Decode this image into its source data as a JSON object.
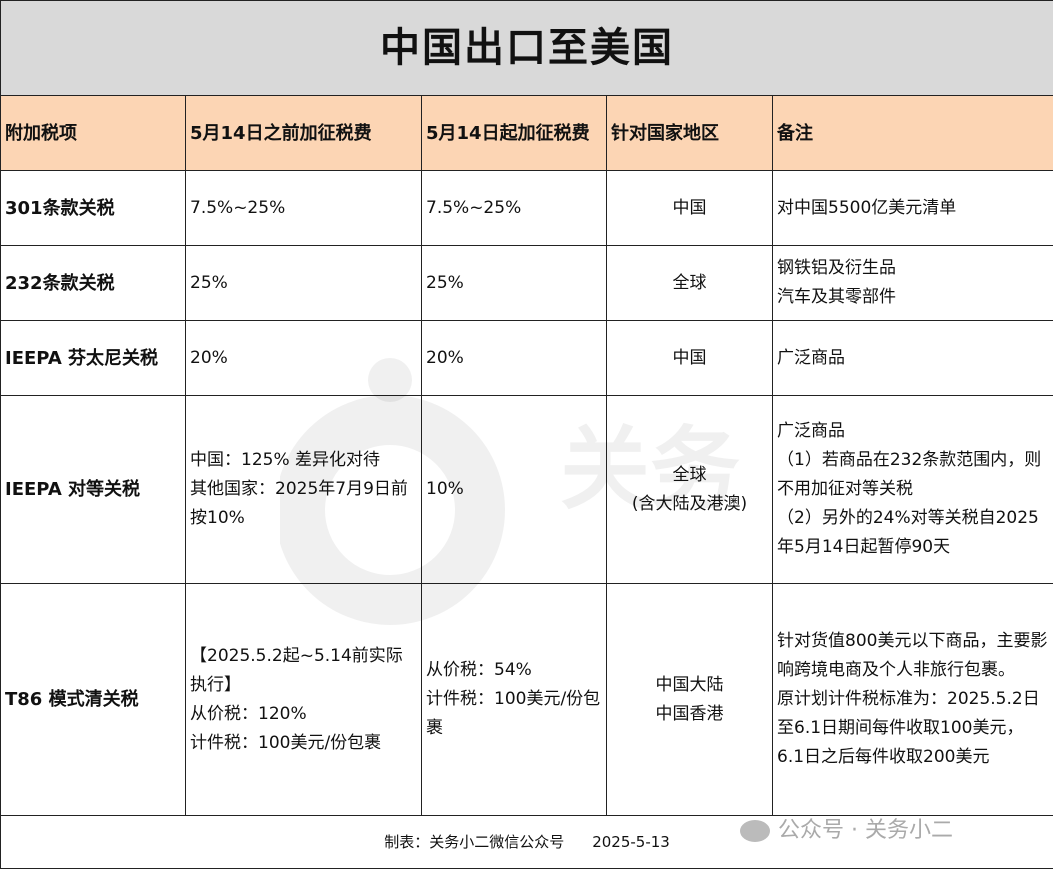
{
  "title": "中国出口至美国",
  "headers": [
    "附加税项",
    "5月14日之前加征税费",
    "5月14日起加征税费",
    "针对国家地区",
    "备注"
  ],
  "rows": [
    {
      "item": "301条款关税",
      "before": "7.5%~25%",
      "after": "7.5%~25%",
      "region": "中国",
      "note": "对中国5500亿美元清单"
    },
    {
      "item": "232条款关税",
      "before": "25%",
      "after": "25%",
      "region": "全球",
      "note": "钢铁铝及衍生品\n汽车及其零部件"
    },
    {
      "item": "IEEPA 芬太尼关税",
      "before": "20%",
      "after": "20%",
      "region": "中国",
      "note": "广泛商品"
    },
    {
      "item": "IEEPA 对等关税",
      "before": "中国：125% 差异化对待\n其他国家：2025年7月9日前按10%",
      "after": "10%",
      "region": "全球\n(含大陆及港澳)",
      "note": "广泛商品\n（1）若商品在232条款范围内，则不用加征对等关税\n（2）另外的24%对等关税自2025年5月14日起暂停90天"
    },
    {
      "item": "T86 模式清关税",
      "before": "【2025.5.2起~5.14前实际执行】\n从价税：120%\n计件税：100美元/份包裹",
      "after": "从价税：54%\n计件税：100美元/份包裹",
      "region": "中国大陆\n中国香港",
      "note": "针对货值800美元以下商品，主要影响跨境电商及个人非旅行包裹。\n原计划计件税标准为：2025.5.2日至6.1日期间每件收取100美元，6.1日之后每件收取200美元"
    }
  ],
  "footer": {
    "maker": "制表：关务小二微信公众号",
    "date": "2025-5-13"
  },
  "watermark": {
    "wechat": "公众号 · 关务小二",
    "logo_text": "关务小二"
  },
  "colors": {
    "title_bg": "#d9d9d9",
    "header_bg": "#fcd5b4"
  }
}
